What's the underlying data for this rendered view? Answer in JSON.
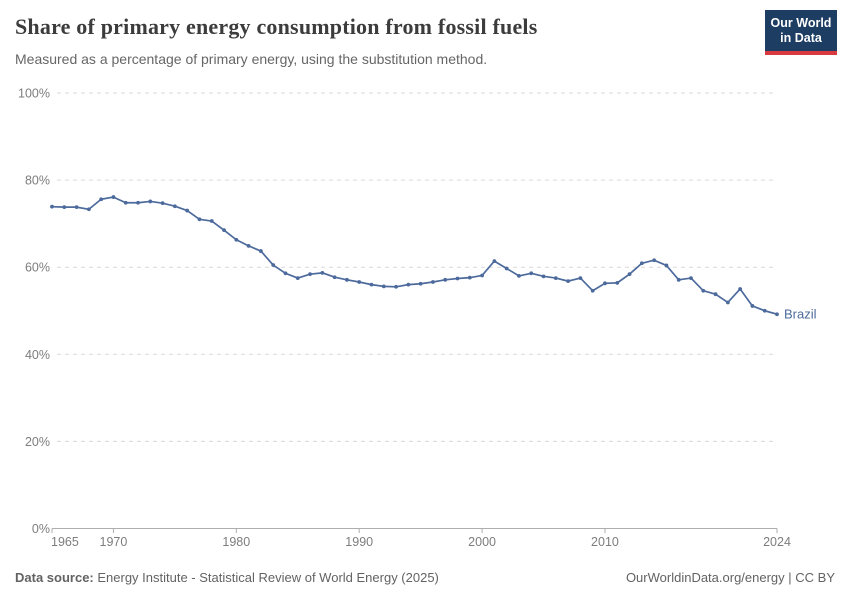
{
  "header": {
    "title": "Share of primary energy consumption from fossil fuels",
    "subtitle": "Measured as a percentage of primary energy, using the substitution method."
  },
  "logo": {
    "line1": "Our World",
    "line2": "in Data"
  },
  "footer": {
    "source_label": "Data source:",
    "source_text": " Energy Institute - Statistical Review of World Energy (2025)",
    "right_text": "OurWorldinData.org/energy | CC BY"
  },
  "colors": {
    "series": "#4C6A9C",
    "gridline": "#dadada",
    "axis": "#adadad",
    "tick_label": "#7d7d7d",
    "title": "#3c3c3c",
    "logo_bg": "#1d3d63",
    "logo_accent": "#d93a3f"
  },
  "chart_data": {
    "type": "line",
    "title": "Share of primary energy consumption from fossil fuels",
    "subtitle": "Measured as a percentage of primary energy, using the substitution method.",
    "xlabel": "",
    "ylabel": "",
    "xlim": [
      1965,
      2024
    ],
    "ylim": [
      0,
      100
    ],
    "grid": "horizontal-dashed",
    "legend": "end-of-line-label",
    "yticks": [
      {
        "label": "0%",
        "value": 0
      },
      {
        "label": "20%",
        "value": 20
      },
      {
        "label": "40%",
        "value": 40
      },
      {
        "label": "60%",
        "value": 60
      },
      {
        "label": "80%",
        "value": 80
      },
      {
        "label": "100%",
        "value": 100
      }
    ],
    "xticks": [
      {
        "label": "1965",
        "value": 1965
      },
      {
        "label": "1970",
        "value": 1970
      },
      {
        "label": "1980",
        "value": 1980
      },
      {
        "label": "1990",
        "value": 1990
      },
      {
        "label": "2000",
        "value": 2000
      },
      {
        "label": "2010",
        "value": 2010
      },
      {
        "label": "2024",
        "value": 2024
      }
    ],
    "series": [
      {
        "name": "Brazil",
        "color": "#4C6A9C",
        "x": [
          1965,
          1966,
          1967,
          1968,
          1969,
          1970,
          1971,
          1972,
          1973,
          1974,
          1975,
          1976,
          1977,
          1978,
          1979,
          1980,
          1981,
          1982,
          1983,
          1984,
          1985,
          1986,
          1987,
          1988,
          1989,
          1990,
          1991,
          1992,
          1993,
          1994,
          1995,
          1996,
          1997,
          1998,
          1999,
          2000,
          2001,
          2002,
          2003,
          2004,
          2005,
          2006,
          2007,
          2008,
          2009,
          2010,
          2011,
          2012,
          2013,
          2014,
          2015,
          2016,
          2017,
          2018,
          2019,
          2020,
          2021,
          2022,
          2023,
          2024
        ],
        "values": [
          73.9,
          73.8,
          73.8,
          73.3,
          75.6,
          76.1,
          74.8,
          74.8,
          75.1,
          74.7,
          74.0,
          73.0,
          71.0,
          70.6,
          68.5,
          66.3,
          64.9,
          63.7,
          60.5,
          58.6,
          57.5,
          58.4,
          58.7,
          57.7,
          57.1,
          56.6,
          56.0,
          55.6,
          55.5,
          56.0,
          56.2,
          56.6,
          57.1,
          57.4,
          57.6,
          58.1,
          61.4,
          59.7,
          58.0,
          58.6,
          57.9,
          57.5,
          56.8,
          57.5,
          54.6,
          56.3,
          56.4,
          58.4,
          60.9,
          61.6,
          60.4,
          57.1,
          57.5,
          54.6,
          53.8,
          51.9,
          55.0,
          51.1,
          50.0,
          49.2
        ]
      }
    ]
  }
}
